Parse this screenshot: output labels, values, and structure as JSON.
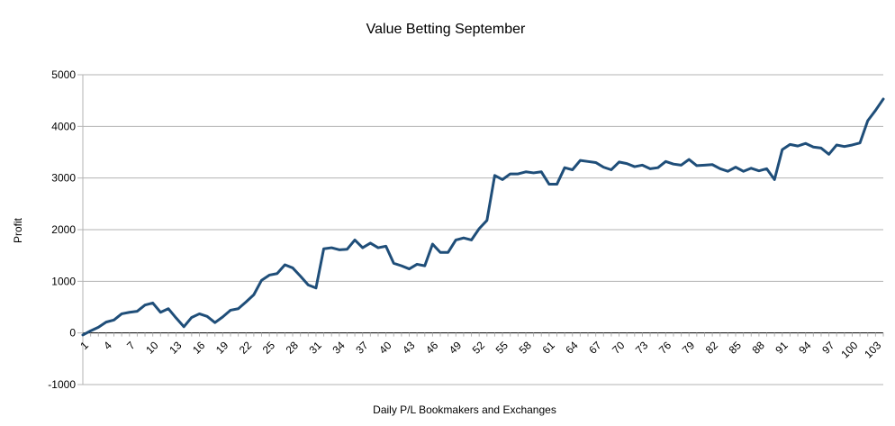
{
  "chart_data": {
    "type": "line",
    "title": "Value Betting September",
    "xlabel": "Daily P/L Bookmakers and Exchanges",
    "ylabel": "Profit",
    "ylim": [
      -1000,
      5000
    ],
    "yticks": [
      -1000,
      0,
      1000,
      2000,
      3000,
      4000,
      5000
    ],
    "xtick_labels": [
      "1",
      "4",
      "7",
      "10",
      "13",
      "16",
      "19",
      "22",
      "25",
      "28",
      "31",
      "34",
      "37",
      "40",
      "43",
      "46",
      "49",
      "52",
      "55",
      "58",
      "61",
      "64",
      "67",
      "70",
      "73",
      "76",
      "79",
      "82",
      "85",
      "88",
      "91",
      "94",
      "97",
      "100",
      "103"
    ],
    "grid": "horizontal",
    "colors": {
      "line": "#1f4e79",
      "grid": "#b3b3b3",
      "axis": "#000000"
    },
    "series": [
      {
        "x": [
          1,
          2,
          3,
          4,
          5,
          6,
          7,
          8,
          9,
          10,
          11,
          12,
          13,
          14,
          15,
          16,
          17,
          18,
          19,
          20,
          21,
          22,
          23,
          24,
          25,
          26,
          27,
          28,
          29,
          30,
          31,
          32,
          33,
          34,
          35,
          36,
          37,
          38,
          39,
          40,
          41,
          42,
          43,
          44,
          45,
          46,
          47,
          48,
          49,
          50,
          51,
          52,
          53,
          54,
          55,
          56,
          57,
          58,
          59,
          60,
          61,
          62,
          63,
          64,
          65,
          66,
          67,
          68,
          69,
          70,
          71,
          72,
          73,
          74,
          75,
          76,
          77,
          78,
          79,
          80,
          81,
          82,
          83,
          84,
          85,
          86,
          87,
          88,
          89,
          90,
          91,
          92,
          93,
          94,
          95,
          96,
          97,
          98,
          99,
          100,
          101,
          102,
          103,
          104
        ],
        "values": [
          -40,
          40,
          110,
          210,
          250,
          370,
          400,
          420,
          540,
          580,
          400,
          470,
          290,
          120,
          300,
          370,
          320,
          200,
          310,
          440,
          470,
          600,
          740,
          1020,
          1120,
          1150,
          1320,
          1260,
          1100,
          930,
          870,
          1630,
          1650,
          1610,
          1620,
          1800,
          1650,
          1740,
          1650,
          1680,
          1350,
          1300,
          1240,
          1330,
          1300,
          1720,
          1560,
          1560,
          1800,
          1840,
          1800,
          2020,
          2180,
          3050,
          2970,
          3080,
          3080,
          3120,
          3100,
          3120,
          2880,
          2880,
          3200,
          3160,
          3340,
          3320,
          3300,
          3210,
          3160,
          3310,
          3280,
          3220,
          3250,
          3180,
          3200,
          3320,
          3270,
          3250,
          3360,
          3240,
          3250,
          3260,
          3180,
          3130,
          3210,
          3130,
          3190,
          3140,
          3180,
          2970,
          3550,
          3650,
          3620,
          3670,
          3600,
          3580,
          3460,
          3640,
          3610,
          3640,
          3680,
          4110,
          4310,
          4530
        ]
      }
    ]
  }
}
